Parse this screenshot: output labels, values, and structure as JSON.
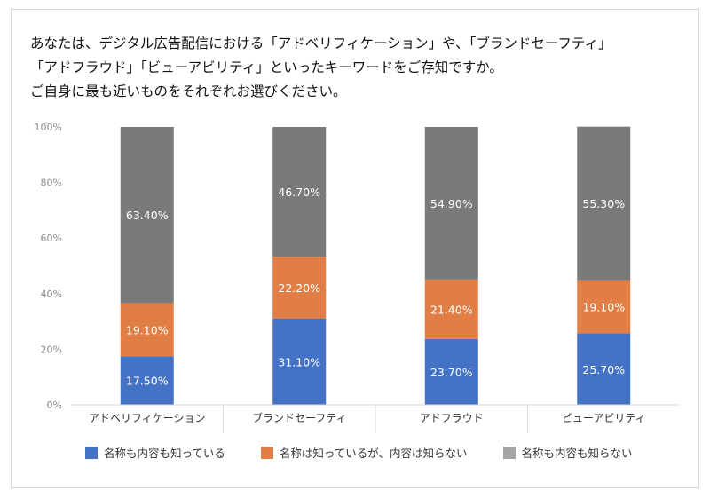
{
  "chart_data": {
    "type": "bar",
    "stacked": true,
    "title": [
      "あなたは、デジタル広告配信における「アドベリフィケーション」や、「ブランドセーフティ」",
      "「アドフラウド」「ビューアビリティ」といったキーワードをご存知ですか。",
      "ご自身に最も近いものをそれぞれお選びください。"
    ],
    "categories": [
      "アドベリフィケーション",
      "ブランドセーフティ",
      "アドフラウド",
      "ビューアビリティ"
    ],
    "series": [
      {
        "name": "名称も内容も知っている",
        "values": [
          17.5,
          31.1,
          23.7,
          25.7
        ],
        "labels": [
          "17.50%",
          "31.10%",
          "23.70%",
          "25.70%"
        ],
        "color": "#4472c4",
        "legend_color": "#4472c4"
      },
      {
        "name": "名称は知っているが、内容は知らない",
        "values": [
          19.1,
          22.2,
          21.4,
          19.1
        ],
        "labels": [
          "19.10%",
          "22.20%",
          "21.40%",
          "19.10%"
        ],
        "color": "#e07e46",
        "legend_color": "#e07e46"
      },
      {
        "name": "名称も内容も知らない",
        "values": [
          63.4,
          46.7,
          54.9,
          55.3
        ],
        "labels": [
          "63.40%",
          "46.70%",
          "54.90%",
          "55.30%"
        ],
        "color": "#7a7a7a",
        "legend_color": "#a5a5a5"
      }
    ],
    "yticks": [
      "0%",
      "20%",
      "40%",
      "60%",
      "80%",
      "100%"
    ],
    "ylim": [
      0,
      100
    ],
    "grid": false,
    "legend": "bottom"
  }
}
